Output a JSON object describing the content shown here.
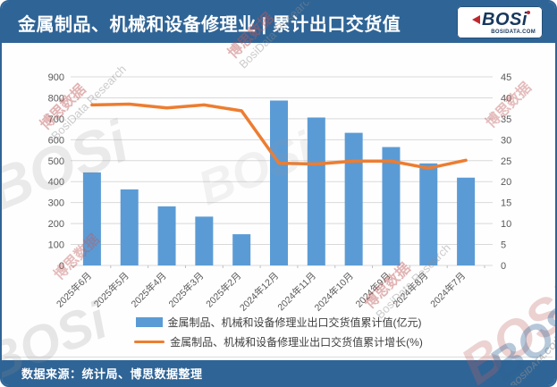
{
  "header": {
    "title": "金属制品、机械和设备修理业 | 累计出口交货值",
    "logo": {
      "text": "BOSi",
      "domain": "BOSIDATA.COM"
    }
  },
  "watermark": {
    "cn": "博思数据",
    "en": "BosiData Research",
    "logo": "BOSi",
    "domain": "BOSIDATA.COM"
  },
  "chart_data": {
    "type": "bar",
    "categories": [
      "2025年6月",
      "2025年5月",
      "2025年4月",
      "2025年3月",
      "2025年2月",
      "2024年12月",
      "2024年11月",
      "2024年10月",
      "2024年9月",
      "2024年8月",
      "2024年7月"
    ],
    "series": [
      {
        "name": "金属制品、机械和设备修理业出口交货值累计值(亿元)",
        "type": "bar",
        "yaxis": "left",
        "color": "#5B9BD5",
        "values": [
          444,
          363,
          282,
          233,
          149,
          787,
          706,
          633,
          565,
          487,
          419
        ]
      },
      {
        "name": "金属制品、机械和设备修理业出口交货值累计增长(%)",
        "type": "line",
        "yaxis": "right",
        "color": "#ED7D31",
        "values": [
          38.3,
          38.5,
          37.6,
          38.3,
          36.9,
          24.4,
          24.2,
          24.9,
          24.9,
          23.2,
          25.1
        ]
      }
    ],
    "left_axis": {
      "min": 0,
      "max": 900,
      "step": 100
    },
    "right_axis": {
      "min": 0,
      "max": 45,
      "step": 5
    },
    "grid": true,
    "legend_position": "bottom"
  },
  "footer": {
    "source": "数据来源：统计局、博思数据整理"
  },
  "colors": {
    "frame_blue": "#2F6496",
    "bar_blue": "#5B9BD5",
    "line_orange": "#ED7D31",
    "gridline": "#D9D9D9",
    "axis_text": "#595959"
  }
}
